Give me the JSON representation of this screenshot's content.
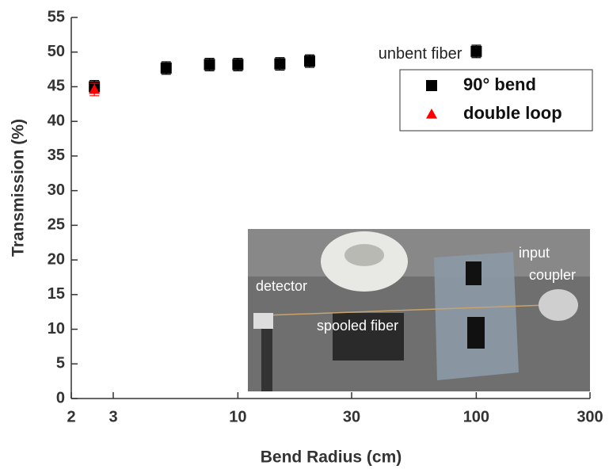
{
  "chart_data": {
    "type": "scatter",
    "xlabel": "Bend Radius (cm)",
    "ylabel": "Transmission (%)",
    "xscale": "log",
    "xlim": [
      2,
      300
    ],
    "xticks": [
      2,
      3,
      10,
      30,
      100,
      300
    ],
    "ylim": [
      0,
      55
    ],
    "yticks": [
      0,
      5,
      10,
      15,
      20,
      25,
      30,
      35,
      40,
      45,
      50,
      55
    ],
    "legend": "upper right",
    "series": [
      {
        "name": "90° bend",
        "color": "#000000",
        "marker": "square",
        "x": [
          2.5,
          5,
          7.6,
          10,
          15,
          20,
          100
        ],
        "values": [
          45,
          47.7,
          48.2,
          48.2,
          48.3,
          48.7,
          50.1
        ],
        "errors": [
          0.9,
          0.9,
          0.9,
          0.9,
          0.9,
          0.9,
          0.9
        ]
      },
      {
        "name": "double loop",
        "color": "#ff0000",
        "marker": "triangle",
        "x": [
          2.5
        ],
        "values": [
          44.6
        ],
        "errors": [
          0.9
        ]
      }
    ],
    "annotations": [
      {
        "text": "unbent fiber",
        "x": 100,
        "y": 50.1
      }
    ],
    "inset_labels": [
      "detector",
      "spooled fiber",
      "input",
      "coupler"
    ]
  }
}
